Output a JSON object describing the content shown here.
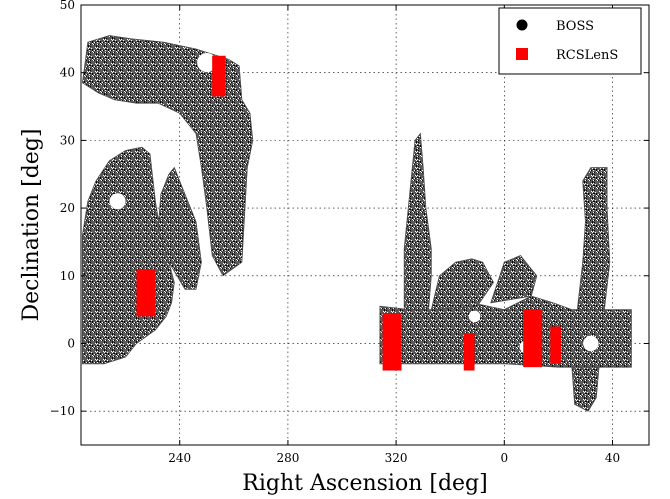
{
  "chart_data": {
    "type": "scatter",
    "title": "",
    "xlabel": "Right Ascension [deg]",
    "ylabel": "Declination [deg]",
    "x_axis": {
      "ticks": [
        240,
        280,
        320,
        0,
        40
      ],
      "tick_labels": [
        "240",
        "280",
        "320",
        "0",
        "40"
      ]
    },
    "y_axis": {
      "range": [
        -15,
        50
      ],
      "ticks": [
        -10,
        0,
        10,
        20,
        30,
        40,
        50
      ],
      "tick_labels": [
        "−10",
        "0",
        "10",
        "20",
        "30",
        "40",
        "50"
      ]
    },
    "grid": true,
    "legend_position": "top-right",
    "series": [
      {
        "name": "BOSS",
        "marker": "circle",
        "color": "#000000",
        "regions": [
          {
            "ra_range": [
              210,
              268
            ],
            "dec_range": [
              28,
              46
            ],
            "description": "northern arc"
          },
          {
            "ra_range": [
              210,
              232
            ],
            "dec_range": [
              -3,
              29
            ],
            "description": "western block"
          },
          {
            "ra_range": [
              248,
              264
            ],
            "dec_range": [
              10,
              30
            ],
            "description": "diagonal strip"
          },
          {
            "ra_range": [
              314,
              407
            ],
            "dec_range": [
              -4,
              5
            ],
            "description": "equatorial stripe"
          },
          {
            "ra_range": [
              323,
              332
            ],
            "dec_range": [
              5,
              30
            ],
            "description": "vertical column"
          },
          {
            "ra_range": [
              390,
              397
            ],
            "dec_range": [
              5,
              26
            ],
            "description": "eastern column"
          },
          {
            "ra_range": [
              385,
              395
            ],
            "dec_range": [
              -10,
              -3
            ],
            "description": "southern extension"
          }
        ]
      },
      {
        "name": "RCSLenS",
        "marker": "square",
        "color": "#ff0000",
        "fields": [
          {
            "ra": [
              252,
              257
            ],
            "dec": [
              36.5,
              42.5
            ]
          },
          {
            "ra": [
              224,
              231
            ],
            "dec": [
              4,
              11
            ]
          },
          {
            "ra": [
              315,
              322
            ],
            "dec": [
              -4,
              4.5
            ]
          },
          {
            "ra": [
              345,
              349
            ],
            "dec": [
              -4,
              1.5
            ]
          },
          {
            "ra": [
              367,
              374
            ],
            "dec": [
              -3.5,
              5
            ]
          },
          {
            "ra": [
              377,
              381
            ],
            "dec": [
              -3,
              2.5
            ]
          }
        ]
      }
    ]
  },
  "legend": {
    "items": [
      {
        "label": "BOSS",
        "color": "#000000"
      },
      {
        "label": "RCSLenS",
        "color": "#ff0000"
      }
    ]
  }
}
